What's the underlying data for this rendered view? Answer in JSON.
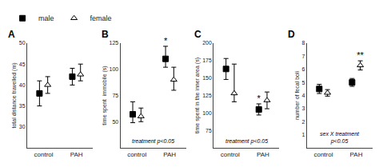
{
  "chart_data": [
    {
      "type": "scatter",
      "title": "A",
      "ylabel": "total distance travelled (m)",
      "categories": [
        "control",
        "PAH"
      ],
      "series": [
        {
          "name": "male",
          "marker": "square",
          "color": "#000000",
          "values": [
            38,
            42
          ],
          "err_low": [
            3,
            2
          ],
          "err_high": [
            3,
            2
          ]
        },
        {
          "name": "female",
          "marker": "triangle-up-open",
          "color": "#000000",
          "values": [
            40,
            42.5
          ],
          "err_low": [
            2,
            1.5
          ],
          "err_high": [
            2,
            2.5
          ]
        }
      ],
      "ylim": [
        25,
        50
      ],
      "yticks": [
        30,
        35,
        40,
        45,
        50
      ],
      "grid": false,
      "legend": "top left"
    },
    {
      "type": "scatter",
      "title": "B",
      "ylabel": "time spent  immobile (s)",
      "categories": [
        "control",
        "PAH"
      ],
      "series": [
        {
          "name": "male",
          "marker": "square",
          "color": "#000000",
          "values": [
            57,
            110
          ],
          "err_low": [
            8,
            8
          ],
          "err_high": [
            12,
            12
          ]
        },
        {
          "name": "female",
          "marker": "triangle-up-open",
          "color": "#000000",
          "values": [
            55,
            90
          ],
          "err_low": [
            5,
            10
          ],
          "err_high": [
            8,
            12
          ]
        }
      ],
      "ylim": [
        25,
        125
      ],
      "yticks": [
        50,
        75,
        100,
        125
      ],
      "grid": false,
      "annotations": [
        {
          "text": "treatment p<0.05"
        },
        {
          "text": "*",
          "category": "PAH",
          "series": "male"
        }
      ]
    },
    {
      "type": "scatter",
      "title": "C",
      "ylabel": "time spent in the inner area (s)",
      "categories": [
        "control",
        "PAH"
      ],
      "series": [
        {
          "name": "male",
          "marker": "square",
          "color": "#000000",
          "values": [
            163,
            105
          ],
          "err_low": [
            15,
            8
          ],
          "err_high": [
            15,
            8
          ]
        },
        {
          "name": "female",
          "marker": "triangle-up-open",
          "color": "#000000",
          "values": [
            128,
            118
          ],
          "err_low": [
            12,
            12
          ],
          "err_high": [
            42,
            12
          ]
        }
      ],
      "ylim": [
        50,
        200
      ],
      "yticks": [
        75,
        100,
        125,
        150,
        175,
        200
      ],
      "grid": false,
      "annotations": [
        {
          "text": "treatment p<0.05"
        },
        {
          "text": "*",
          "category": "PAH",
          "series": "male"
        }
      ]
    },
    {
      "type": "scatter",
      "title": "D",
      "ylabel": "number of fecal boli",
      "categories": [
        "control",
        "PAH"
      ],
      "series": [
        {
          "name": "male",
          "marker": "square",
          "color": "#000000",
          "values": [
            4.5,
            5.0
          ],
          "err_low": [
            0.35,
            0.3
          ],
          "err_high": [
            0.35,
            0.3
          ]
        },
        {
          "name": "female",
          "marker": "triangle-up-open",
          "color": "#000000",
          "values": [
            4.2,
            6.3
          ],
          "err_low": [
            0.25,
            0.35
          ],
          "err_high": [
            0.25,
            0.35
          ]
        }
      ],
      "ylim": [
        0,
        8
      ],
      "yticks": [
        1,
        2,
        3,
        4,
        5,
        6,
        7,
        8
      ],
      "grid": false,
      "annotations": [
        {
          "text": "sex X treatment\np<0.05"
        },
        {
          "text": "**",
          "category": "PAH",
          "series": "female"
        }
      ]
    }
  ]
}
